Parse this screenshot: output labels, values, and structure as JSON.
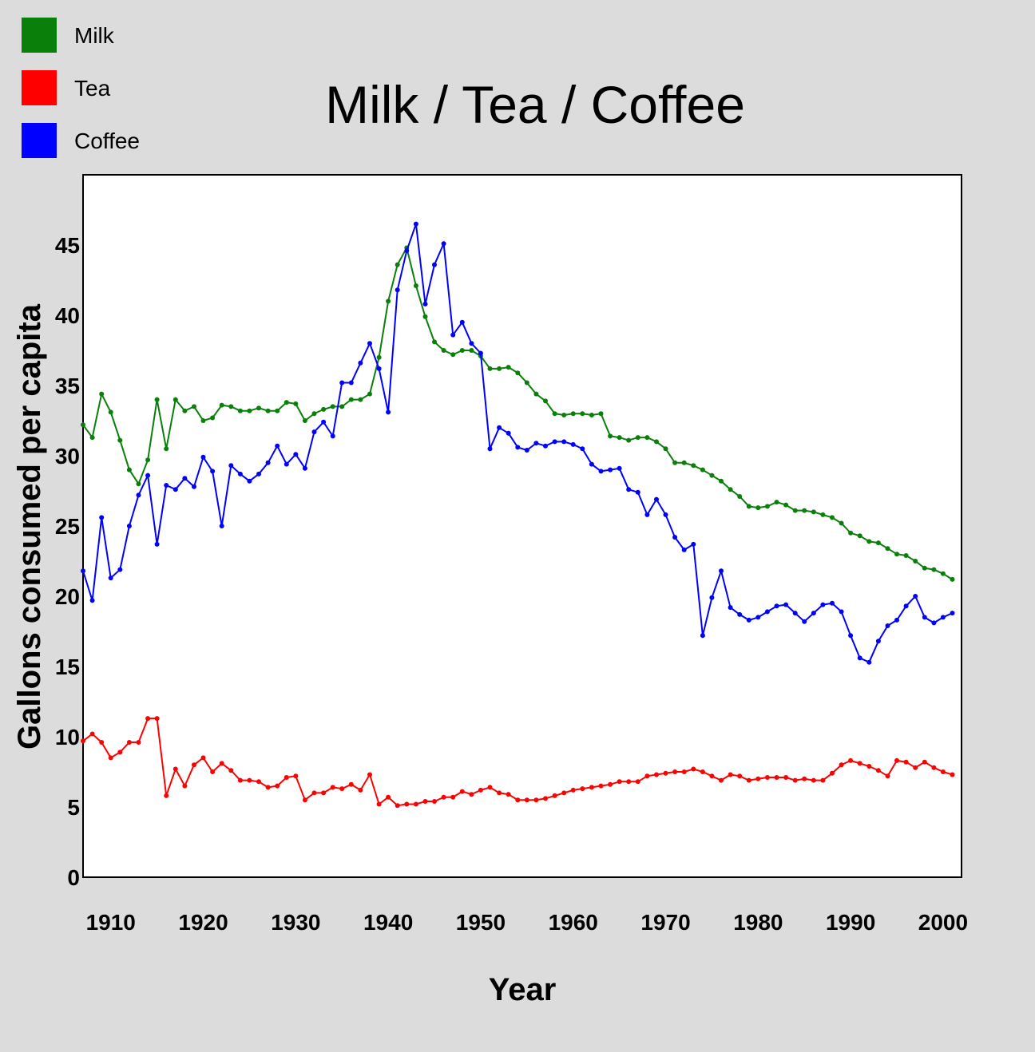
{
  "chart_data": {
    "type": "line",
    "title": "Milk / Tea / Coffee",
    "xlabel": "Year",
    "ylabel": "Gallons consumed per capita",
    "xlim": [
      1907,
      2002
    ],
    "ylim": [
      0,
      50
    ],
    "x_ticks": [
      1910,
      1920,
      1930,
      1940,
      1950,
      1960,
      1970,
      1980,
      1990,
      2000
    ],
    "y_ticks": [
      0,
      5,
      10,
      15,
      20,
      25,
      30,
      35,
      40,
      45
    ],
    "legend_position": "top-left",
    "grid": false,
    "x": [
      1907,
      1908,
      1909,
      1910,
      1911,
      1912,
      1913,
      1914,
      1915,
      1916,
      1917,
      1918,
      1919,
      1920,
      1921,
      1922,
      1923,
      1924,
      1925,
      1926,
      1927,
      1928,
      1929,
      1930,
      1931,
      1932,
      1933,
      1934,
      1935,
      1936,
      1937,
      1938,
      1939,
      1940,
      1941,
      1942,
      1943,
      1944,
      1945,
      1946,
      1947,
      1948,
      1949,
      1950,
      1951,
      1952,
      1953,
      1954,
      1955,
      1956,
      1957,
      1958,
      1959,
      1960,
      1961,
      1962,
      1963,
      1964,
      1965,
      1966,
      1967,
      1968,
      1969,
      1970,
      1971,
      1972,
      1973,
      1974,
      1975,
      1976,
      1977,
      1978,
      1979,
      1980,
      1981,
      1982,
      1983,
      1984,
      1985,
      1986,
      1987,
      1988,
      1989,
      1990,
      1991,
      1992,
      1993,
      1994,
      1995,
      1996,
      1997,
      1998,
      1999,
      2000,
      2001
    ],
    "series": [
      {
        "name": "Milk",
        "color": "#0a7f0a",
        "values": [
          32.2,
          31.3,
          34.4,
          33.1,
          31.1,
          29.0,
          28.0,
          29.7,
          34.0,
          30.5,
          34.0,
          33.2,
          33.5,
          32.5,
          32.7,
          33.6,
          33.5,
          33.2,
          33.2,
          33.4,
          33.2,
          33.2,
          33.8,
          33.7,
          32.5,
          33.0,
          33.3,
          33.5,
          33.5,
          34.0,
          34.0,
          34.4,
          37.0,
          41.0,
          43.6,
          44.8,
          42.1,
          39.9,
          38.1,
          37.5,
          37.2,
          37.5,
          37.5,
          37.1,
          36.2,
          36.2,
          36.3,
          35.9,
          35.2,
          34.4,
          33.9,
          33.0,
          32.9,
          33.0,
          33.0,
          32.9,
          33.0,
          31.4,
          31.3,
          31.1,
          31.3,
          31.3,
          31.0,
          30.5,
          29.5,
          29.5,
          29.3,
          29.0,
          28.6,
          28.2,
          27.6,
          27.1,
          26.4,
          26.3,
          26.4,
          26.7,
          26.5,
          26.1,
          26.1,
          26.0,
          25.8,
          25.6,
          25.2,
          24.5,
          24.3,
          23.9,
          23.8,
          23.4,
          23.0,
          22.9,
          22.5,
          22.0,
          21.9,
          21.6,
          21.2
        ]
      },
      {
        "name": "Tea",
        "color": "#ff0000",
        "values": [
          9.7,
          10.2,
          9.6,
          8.5,
          8.9,
          9.6,
          9.6,
          11.3,
          11.3,
          5.8,
          7.7,
          6.5,
          8.0,
          8.5,
          7.5,
          8.1,
          7.6,
          6.9,
          6.9,
          6.8,
          6.4,
          6.5,
          7.1,
          7.2,
          5.5,
          6.0,
          6.0,
          6.4,
          6.3,
          6.6,
          6.2,
          7.3,
          5.2,
          5.7,
          5.1,
          5.2,
          5.2,
          5.4,
          5.4,
          5.7,
          5.7,
          6.1,
          5.9,
          6.2,
          6.4,
          6.0,
          5.9,
          5.5,
          5.5,
          5.5,
          5.6,
          5.8,
          6.0,
          6.2,
          6.3,
          6.4,
          6.5,
          6.6,
          6.8,
          6.8,
          6.8,
          7.2,
          7.3,
          7.4,
          7.5,
          7.5,
          7.7,
          7.5,
          7.2,
          6.9,
          7.3,
          7.2,
          6.9,
          7.0,
          7.1,
          7.1,
          7.1,
          6.9,
          7.0,
          6.9,
          6.9,
          7.4,
          8.0,
          8.3,
          8.1,
          7.9,
          7.6,
          7.2,
          8.3,
          8.2,
          7.8,
          8.2,
          7.8,
          7.5,
          7.3
        ]
      },
      {
        "name": "Coffee",
        "color": "#0000ff",
        "values": [
          21.8,
          19.7,
          25.6,
          21.3,
          21.9,
          25.0,
          27.2,
          28.6,
          23.7,
          27.9,
          27.6,
          28.4,
          27.8,
          29.9,
          28.9,
          25.0,
          29.3,
          28.7,
          28.2,
          28.7,
          29.5,
          30.7,
          29.4,
          30.1,
          29.1,
          31.7,
          32.4,
          31.4,
          35.2,
          35.2,
          36.6,
          38.0,
          36.2,
          33.1,
          41.8,
          44.6,
          46.5,
          40.8,
          43.6,
          45.1,
          38.6,
          39.5,
          38.0,
          37.3,
          30.5,
          32.0,
          31.6,
          30.6,
          30.4,
          30.9,
          30.7,
          31.0,
          31.0,
          30.8,
          30.5,
          29.4,
          28.9,
          29.0,
          29.1,
          27.6,
          27.4,
          25.8,
          26.9,
          25.8,
          24.2,
          23.3,
          23.7,
          17.2,
          19.9,
          21.8,
          19.2,
          18.7,
          18.3,
          18.5,
          18.9,
          19.3,
          19.4,
          18.8,
          18.2,
          18.8,
          19.4,
          19.5,
          18.9,
          17.2,
          15.6,
          15.3,
          16.8,
          17.9,
          18.3,
          19.3,
          20.0,
          18.5,
          18.1,
          18.5,
          18.8
        ]
      }
    ]
  }
}
